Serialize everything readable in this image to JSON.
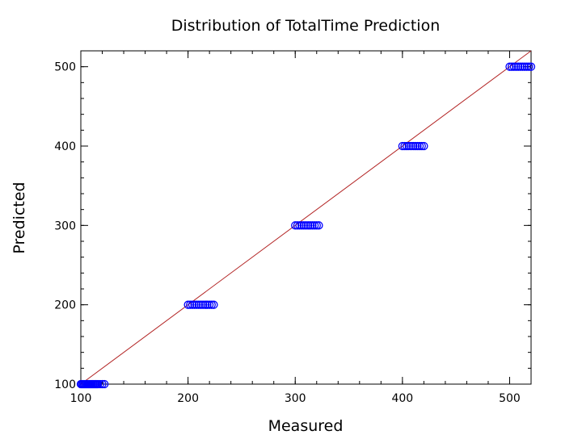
{
  "chart_data": {
    "type": "scatter",
    "title": "Distribution of TotalTime Prediction",
    "xlabel": "Measured",
    "ylabel": "Predicted",
    "xlim": [
      100,
      520
    ],
    "ylim": [
      100,
      520
    ],
    "x_ticks": [
      100,
      200,
      300,
      400,
      500
    ],
    "y_ticks": [
      100,
      200,
      300,
      400,
      500
    ],
    "grid": false,
    "legend": "none",
    "reference_line": {
      "from": [
        100,
        100
      ],
      "to": [
        520,
        520
      ],
      "color": "#b22222"
    },
    "marker": {
      "shape": "open-circle",
      "color": "#0000ff"
    },
    "series": [
      {
        "x": [
          100,
          101,
          102,
          103,
          104,
          105,
          106,
          107,
          108,
          109,
          110,
          111,
          112,
          113,
          114,
          115,
          116,
          118,
          120,
          122,
          200,
          202,
          204,
          206,
          208,
          210,
          212,
          214,
          216,
          218,
          220,
          222,
          224,
          300,
          302,
          304,
          306,
          308,
          310,
          312,
          314,
          316,
          318,
          320,
          322,
          400,
          402,
          404,
          406,
          408,
          410,
          412,
          414,
          416,
          418,
          420,
          500,
          502,
          504,
          506,
          508,
          510,
          512,
          514,
          516,
          518,
          520
        ],
        "y": [
          100,
          100,
          100,
          100,
          100,
          100,
          100,
          100,
          100,
          100,
          100,
          100,
          100,
          100,
          100,
          100,
          100,
          100,
          100,
          100,
          200,
          200,
          200,
          200,
          200,
          200,
          200,
          200,
          200,
          200,
          200,
          200,
          200,
          300,
          300,
          300,
          300,
          300,
          300,
          300,
          300,
          300,
          300,
          300,
          300,
          400,
          400,
          400,
          400,
          400,
          400,
          400,
          400,
          400,
          400,
          400,
          500,
          500,
          500,
          500,
          500,
          500,
          500,
          500,
          500,
          500,
          500
        ]
      }
    ]
  }
}
